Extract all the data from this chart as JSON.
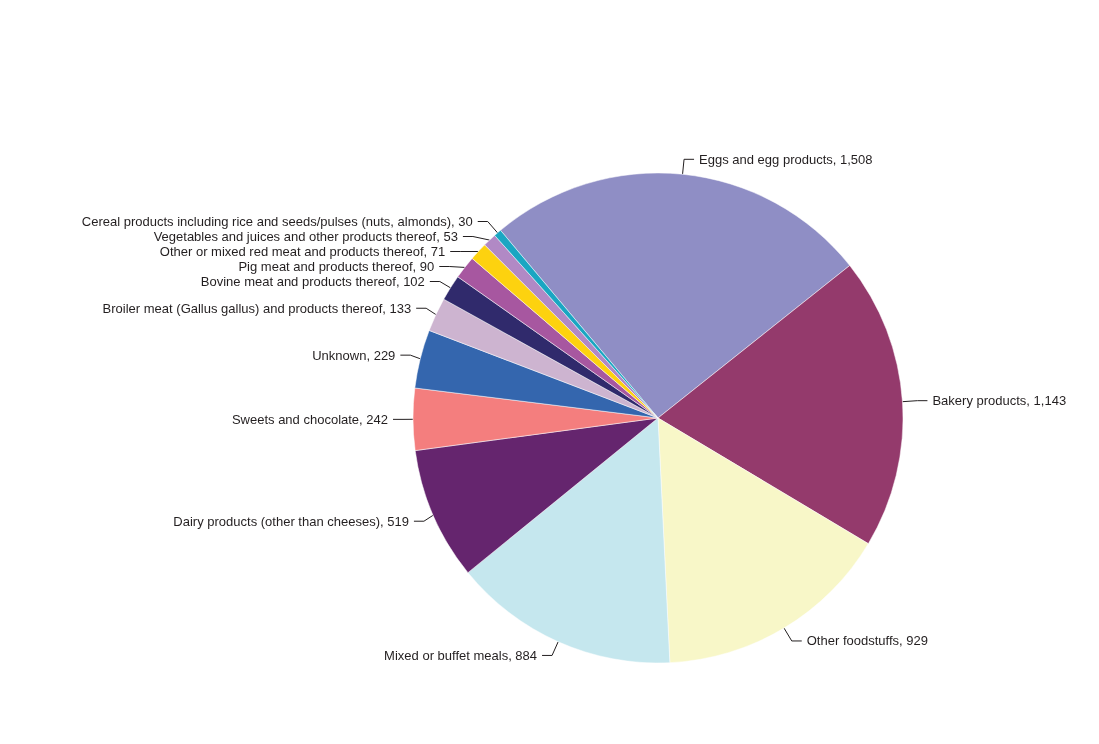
{
  "chart_data": {
    "type": "pie",
    "categories": [
      "Eggs and egg products, 1,508",
      "Bakery products, 1,143",
      "Other foodstuffs, 929",
      "Mixed or buffet meals, 884",
      "Dairy products (other than cheeses), 519",
      "Sweets and chocolate, 242",
      "Unknown, 229",
      "Broiler meat (Gallus gallus) and products thereof, 133",
      "Bovine meat and products thereof, 102",
      "Pig meat and products thereof, 90",
      "Other or mixed red meat and products thereof, 71",
      "Vegetables and juices and other products thereof, 53",
      "Cereal products including rice and seeds/pulses (nuts, almonds), 30"
    ],
    "values": [
      1508,
      1143,
      929,
      884,
      519,
      242,
      229,
      133,
      102,
      90,
      71,
      53,
      30
    ],
    "colors": [
      "#8f8ec5",
      "#943a6c",
      "#f8f7c8",
      "#c5e7ee",
      "#65256e",
      "#f47e7e",
      "#3466ae",
      "#cdb4d0",
      "#302a6c",
      "#a757a0",
      "#fdd20f",
      "#b189c5",
      "#1aa6c2"
    ]
  }
}
